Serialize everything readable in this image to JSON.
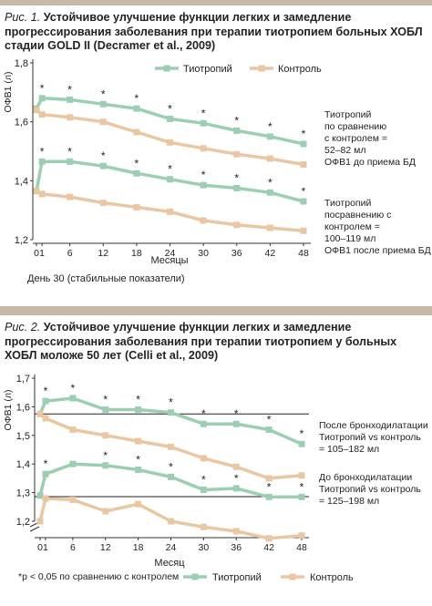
{
  "colors": {
    "tiotropium": "#9ccfb1",
    "control": "#e9c7a3",
    "band": "#c8b9a6",
    "axis": "#333333"
  },
  "figure1": {
    "caption_label": "Рис. 1.",
    "caption_text": "Устойчивое улучшение функции легких и замедление прогрессирования заболевания при терапии тиотропием больных ХОБЛ стадии GOLD II (Decramer et al., 2009)",
    "legend_tiotropium": "Тиотропий",
    "legend_control": "Контроль",
    "ylabel": "ОФВ1 (л)",
    "xlabel": "Месяцы",
    "footnote": "День 30 (стабильные показатели)",
    "annotation_top": [
      "Тиотропий",
      "по сравнению",
      "с контролем =",
      "52–82 мл",
      "ОФВ1 до приема БД"
    ],
    "annotation_bottom": [
      "Тиотропий",
      "посравнению с",
      "контролем =",
      "100–119 мл",
      "ОФВ1 после приема БД"
    ]
  },
  "figure2": {
    "caption_label": "Рис. 2.",
    "caption_text": "Устойчивое улучшение функции легких и замедление прогрессирования заболевания при терапии тиотропием у больных ХОБЛ моложе 50 лет (Celli et al., 2009)",
    "legend_note": "*p < 0,05 по сравнению с контролем",
    "legend_tiotropium": "Тиотропий",
    "legend_control": "Контроль",
    "ylabel": "ОФВ1 (л)",
    "xlabel": "Месяц",
    "annotation_top": [
      "После бронходилатации",
      "Тиотропий vs контроль",
      "= 105–182 мл"
    ],
    "annotation_bottom": [
      "До бронходилатации",
      "Тиотропий vs контроль",
      "= 125–198 мл"
    ]
  },
  "chart_data": [
    {
      "type": "line",
      "title": "Рис. 1",
      "xlabel": "Месяцы",
      "ylabel": "ОФВ1 (л)",
      "ylim": [
        1.2,
        1.8
      ],
      "yticks": [
        "1,2",
        "1,4",
        "1,6",
        "1,8"
      ],
      "xticks": [
        0,
        1,
        6,
        12,
        18,
        24,
        30,
        36,
        42,
        48
      ],
      "series": [
        {
          "name": "Тиотропий",
          "group": "post",
          "x": [
            0,
            1,
            6,
            12,
            18,
            24,
            30,
            36,
            42,
            48
          ],
          "values": [
            1.645,
            1.68,
            1.675,
            1.66,
            1.645,
            1.61,
            1.595,
            1.57,
            1.55,
            1.525
          ],
          "significant": [
            false,
            true,
            true,
            true,
            true,
            true,
            true,
            true,
            true,
            true
          ]
        },
        {
          "name": "Контроль",
          "group": "post",
          "x": [
            0,
            1,
            6,
            12,
            18,
            24,
            30,
            36,
            42,
            48
          ],
          "values": [
            1.64,
            1.625,
            1.615,
            1.6,
            1.565,
            1.53,
            1.51,
            1.49,
            1.475,
            1.455
          ]
        },
        {
          "name": "Тиотропий",
          "group": "pre",
          "x": [
            0,
            1,
            6,
            12,
            18,
            24,
            30,
            36,
            42,
            48
          ],
          "values": [
            1.365,
            1.465,
            1.465,
            1.45,
            1.425,
            1.405,
            1.385,
            1.375,
            1.36,
            1.33
          ],
          "significant": [
            false,
            true,
            true,
            true,
            true,
            true,
            true,
            true,
            true,
            true
          ]
        },
        {
          "name": "Контроль",
          "group": "pre",
          "x": [
            0,
            1,
            6,
            12,
            18,
            24,
            30,
            36,
            42,
            48
          ],
          "values": [
            1.365,
            1.355,
            1.345,
            1.325,
            1.31,
            1.295,
            1.265,
            1.25,
            1.24,
            1.23
          ]
        }
      ]
    },
    {
      "type": "line",
      "title": "Рис. 2",
      "xlabel": "Месяц",
      "ylabel": "ОФВ1 (л)",
      "ylim": [
        1.2,
        1.7
      ],
      "yticks": [
        "1,2",
        "1,3",
        "1,4",
        "1,5",
        "1,6",
        "1,7"
      ],
      "xticks": [
        0,
        1,
        6,
        12,
        18,
        24,
        30,
        36,
        42,
        48
      ],
      "axis_break": true,
      "reference_lines": [
        1.575,
        1.286
      ],
      "series": [
        {
          "name": "Тиотропий",
          "group": "post",
          "x": [
            0,
            1,
            6,
            12,
            18,
            24,
            30,
            36,
            42,
            48
          ],
          "values": [
            1.575,
            1.62,
            1.63,
            1.59,
            1.59,
            1.58,
            1.54,
            1.54,
            1.52,
            1.47
          ],
          "significant": [
            false,
            true,
            true,
            true,
            true,
            true,
            true,
            true,
            true,
            true
          ]
        },
        {
          "name": "Контроль",
          "group": "post",
          "x": [
            0,
            1,
            6,
            12,
            18,
            24,
            30,
            36,
            42,
            48
          ],
          "values": [
            1.575,
            1.56,
            1.52,
            1.5,
            1.48,
            1.46,
            1.42,
            1.39,
            1.35,
            1.36
          ]
        },
        {
          "name": "Тиотропий",
          "group": "pre",
          "x": [
            0,
            1,
            6,
            12,
            18,
            24,
            30,
            36,
            42,
            48
          ],
          "values": [
            1.29,
            1.365,
            1.4,
            1.395,
            1.38,
            1.355,
            1.31,
            1.315,
            1.285,
            1.285
          ],
          "significant": [
            false,
            true,
            false,
            true,
            true,
            true,
            true,
            true,
            true,
            true
          ]
        },
        {
          "name": "Контроль",
          "group": "pre",
          "x": [
            0,
            1,
            6,
            12,
            18,
            24,
            30,
            36,
            42,
            48
          ],
          "values": [
            1.2,
            1.28,
            1.275,
            1.235,
            1.26,
            1.2,
            1.18,
            1.165,
            1.14,
            1.15
          ]
        }
      ]
    }
  ]
}
